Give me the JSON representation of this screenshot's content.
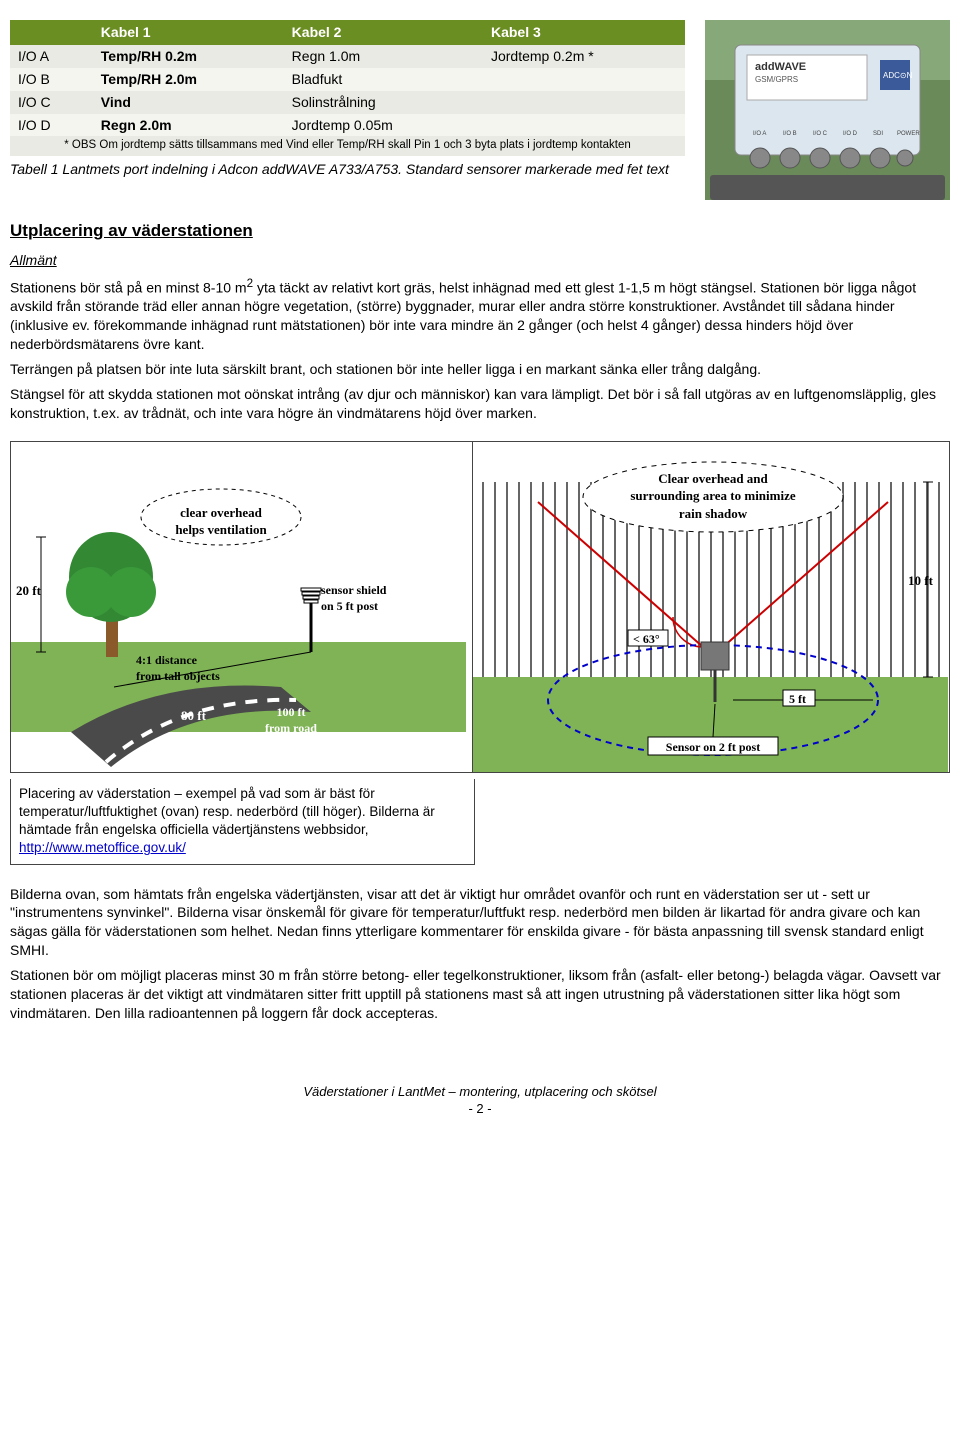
{
  "table": {
    "headers": [
      "",
      "Kabel 1",
      "Kabel 2",
      "Kabel 3"
    ],
    "rows": [
      [
        "I/O A",
        "Temp/RH 0.2m",
        "Regn 1.0m",
        "Jordtemp 0.2m *"
      ],
      [
        "I/O B",
        "Temp/RH 2.0m",
        "Bladfukt",
        ""
      ],
      [
        "I/O C",
        "Vind",
        "Solinstrålning",
        ""
      ],
      [
        "I/O D",
        "Regn 2.0m",
        "Jordtemp 0.05m",
        ""
      ]
    ],
    "bold_cells": [
      [
        0,
        1
      ],
      [
        1,
        1
      ],
      [
        2,
        1
      ],
      [
        3,
        1
      ]
    ],
    "note": "* OBS  Om jordtemp sätts tillsammans med Vind eller Temp/RH skall Pin 1 och 3 byta plats i jordtemp kontakten",
    "header_bg": "#6b8e23",
    "header_color": "#ffffff"
  },
  "caption1": "Tabell 1 Lantmets port indelning i Adcon addWAVE A733/A753. Standard sensorer markerade med fet text",
  "heading": "Utplacering av väderstationen",
  "subhead": "Allmänt",
  "p1a": "Stationens bör stå på en minst 8-10 m",
  "p1b": " yta täckt av relativt kort gräs, helst inhägnad med ett glest 1-1,5 m högt stängsel. Stationen bör ligga något avskild från störande träd eller annan högre vegetation, (större) byggnader, murar eller andra större konstruktioner. Avståndet till sådana hinder (inklusive ev. förekommande inhägnad runt mätstationen) bör inte vara mindre än 2 gånger (och helst 4 gånger) dessa hinders höjd över nederbördsmätarens övre kant.",
  "p2": "Terrängen på platsen bör inte luta särskilt brant, och stationen bör inte heller ligga i en markant sänka eller trång dalgång.",
  "p3": "Stängsel för att skydda stationen mot oönskat intrång (av djur och människor) kan vara lämpligt. Det bör i så fall utgöras av en luftgenomsläpplig, gles konstruktion, t.ex. av trådnät, och inte vara högre än vindmätarens höjd över marken.",
  "diag_left": {
    "clear_overhead": "clear overhead\nhelps ventilation",
    "sensor_shield": "sensor shield\non 5 ft post",
    "d20ft": "20 ft",
    "d41": "4:1 distance\nfrom tall objects",
    "d80ft": "80 ft",
    "d100ft": "100 ft\nfrom road",
    "grass_color": "#7fb356",
    "sky_color": "#ffffff",
    "tree_green": "#338833",
    "tree_trunk": "#8b5a2b",
    "road_color": "#4a4a4a"
  },
  "diag_right": {
    "top_label": "Clear overhead and\nsurrounding area to minimize\nrain shadow",
    "angle": "< 63°",
    "d10ft": "10 ft",
    "d5ft": "5 ft",
    "sensor_label": "Sensor on 2 ft post",
    "fence_color": "#666666",
    "ellipse_stroke": "#0000cc",
    "cone_stroke": "#cc0000",
    "grass_color": "#7fb356"
  },
  "caption2_a": "Placering av väderstation – exempel på vad som är bäst för temperatur/luftfuktighet (ovan) resp. nederbörd (till höger). Bilderna är hämtade från engelska officiella vädertjänstens webbsidor, ",
  "caption2_link": "http://www.metoffice.gov.uk/",
  "p4": "Bilderna ovan, som hämtats från engelska vädertjänsten, visar att det är viktigt hur området ovanför och runt en väderstation ser ut - sett ur \"instrumentens synvinkel\". Bilderna visar önskemål för givare för temperatur/luftfukt resp. nederbörd men bilden är likartad för andra givare och kan sägas gälla för väderstationen som helhet. Nedan finns ytterligare kommentarer för enskilda givare - för bästa anpassning till svensk standard enligt SMHI.",
  "p5": "Stationen bör om möjligt placeras minst 30 m från större betong- eller tegelkonstruktioner, liksom från (asfalt- eller betong-) belagda vägar. Oavsett var stationen placeras är det viktigt att vindmätaren sitter fritt upptill på stationens mast så att ingen utrustning på väderstationen sitter lika högt som vindmätaren. Den lilla radioantennen på loggern får dock accepteras.",
  "footer": "Väderstationer i LantMet – montering, utplacering och skötsel",
  "pagenum": "- 2 -"
}
